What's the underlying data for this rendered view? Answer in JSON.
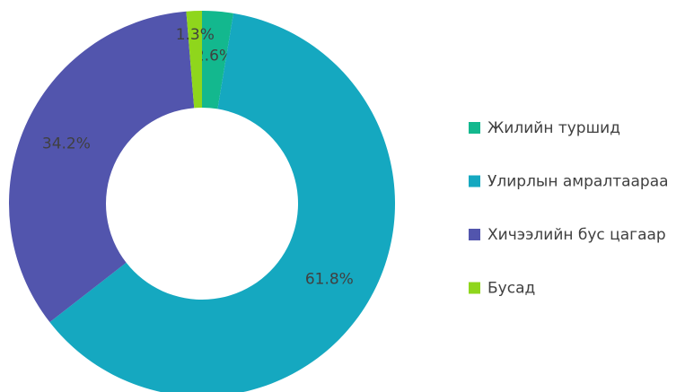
{
  "chart_data": {
    "type": "donut",
    "categories": [
      "Жилийн туршид",
      "Улирлын амралтаараа",
      "Хичээлийн бус цагаар",
      "Бусад"
    ],
    "values": [
      2.6,
      61.8,
      34.2,
      1.3
    ],
    "value_labels": [
      "2.6%",
      "61.8%",
      "34.2%",
      "1.3%"
    ],
    "colors": [
      "#13b88e",
      "#15a8c0",
      "#5255ad",
      "#8fd61c"
    ],
    "legend": "right"
  }
}
